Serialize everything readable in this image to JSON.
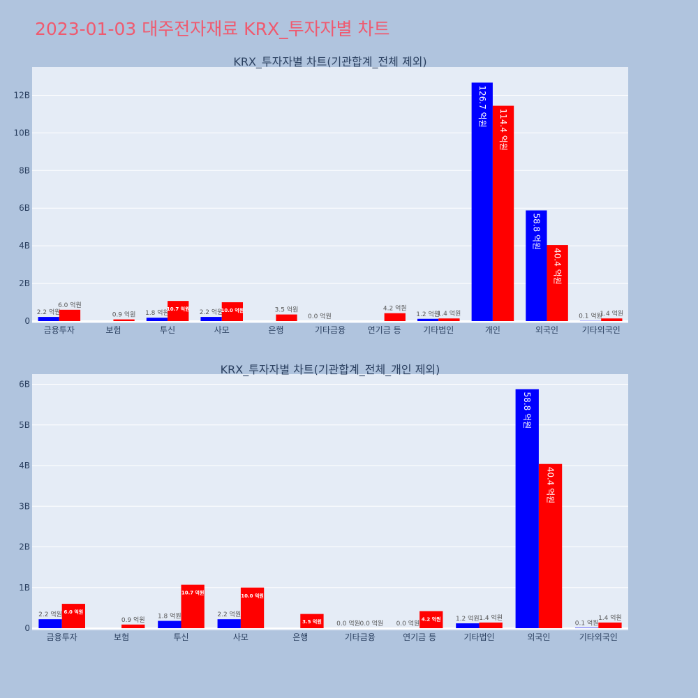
{
  "page": {
    "title": "2023-01-03 대주전자재료 KRX_투자자별 차트"
  },
  "colors": {
    "buy": "#0000ff",
    "sell": "#ff0000",
    "plot_bg": "#e5ecf6",
    "page_bg": "#b0c4de",
    "title": "#ef5a6f"
  },
  "chart_data": [
    {
      "type": "bar",
      "title": "KRX_투자자별 차트(기관합계_전체 제외)",
      "categories": [
        "금융투자",
        "보험",
        "투신",
        "사모",
        "은행",
        "기타금융",
        "연기금 등",
        "기타법인",
        "개인",
        "외국인",
        "기타외국인"
      ],
      "series": [
        {
          "color": "#0000ff",
          "values": [
            220000000,
            0,
            180000000,
            220000000,
            0,
            0,
            0,
            120000000,
            12670000000,
            5880000000,
            10000000
          ],
          "labels": [
            "2.2 억원",
            "",
            "1.8 억원",
            "2.2 억원",
            "",
            "0.0 억원",
            "",
            "1.2 억원",
            "126.7 억원",
            "58.8 억원",
            "0.1 억원"
          ]
        },
        {
          "color": "#ff0000",
          "values": [
            600000000,
            90000000,
            1070000000,
            1000000000,
            350000000,
            0,
            420000000,
            140000000,
            11440000000,
            4040000000,
            140000000
          ],
          "labels": [
            "6.0 억원",
            "0.9 억원",
            "10.7 억원",
            "10.0 억원",
            "3.5 억원",
            "",
            "4.2 억원",
            "1.4 억원",
            "114.4 억원",
            "40.4 억원",
            "1.4 억원"
          ]
        }
      ],
      "ylim": [
        0,
        13500000000
      ],
      "yticks": [
        0,
        2000000000,
        4000000000,
        6000000000,
        8000000000,
        10000000000,
        12000000000
      ],
      "ytick_labels": [
        "0",
        "2B",
        "4B",
        "6B",
        "8B",
        "10B",
        "12B"
      ],
      "grid": true
    },
    {
      "type": "bar",
      "title": "KRX_투자자별 차트(기관합계_전체_개인 제외)",
      "categories": [
        "금융투자",
        "보험",
        "투신",
        "사모",
        "은행",
        "기타금융",
        "연기금 등",
        "기타법인",
        "외국인",
        "기타외국인"
      ],
      "series": [
        {
          "color": "#0000ff",
          "values": [
            220000000,
            0,
            180000000,
            220000000,
            0,
            0,
            0,
            120000000,
            5880000000,
            10000000
          ],
          "labels": [
            "2.2 억원",
            "",
            "1.8 억원",
            "2.2 억원",
            "",
            "0.0 억원",
            "0.0 억원",
            "1.2 억원",
            "58.8 억원",
            "0.1 억원"
          ]
        },
        {
          "color": "#ff0000",
          "values": [
            600000000,
            90000000,
            1070000000,
            1000000000,
            350000000,
            0,
            420000000,
            140000000,
            4040000000,
            140000000
          ],
          "labels": [
            "6.0 억원",
            "0.9 억원",
            "10.7 억원",
            "10.0 억원",
            "3.5 억원",
            "0.0 억원",
            "4.2 억원",
            "1.4 억원",
            "40.4 억원",
            "1.4 억원"
          ]
        }
      ],
      "ylim": [
        0,
        6250000000
      ],
      "yticks": [
        0,
        1000000000,
        2000000000,
        3000000000,
        4000000000,
        5000000000,
        6000000000
      ],
      "ytick_labels": [
        "0",
        "1B",
        "2B",
        "3B",
        "4B",
        "5B",
        "6B"
      ],
      "grid": true
    }
  ]
}
